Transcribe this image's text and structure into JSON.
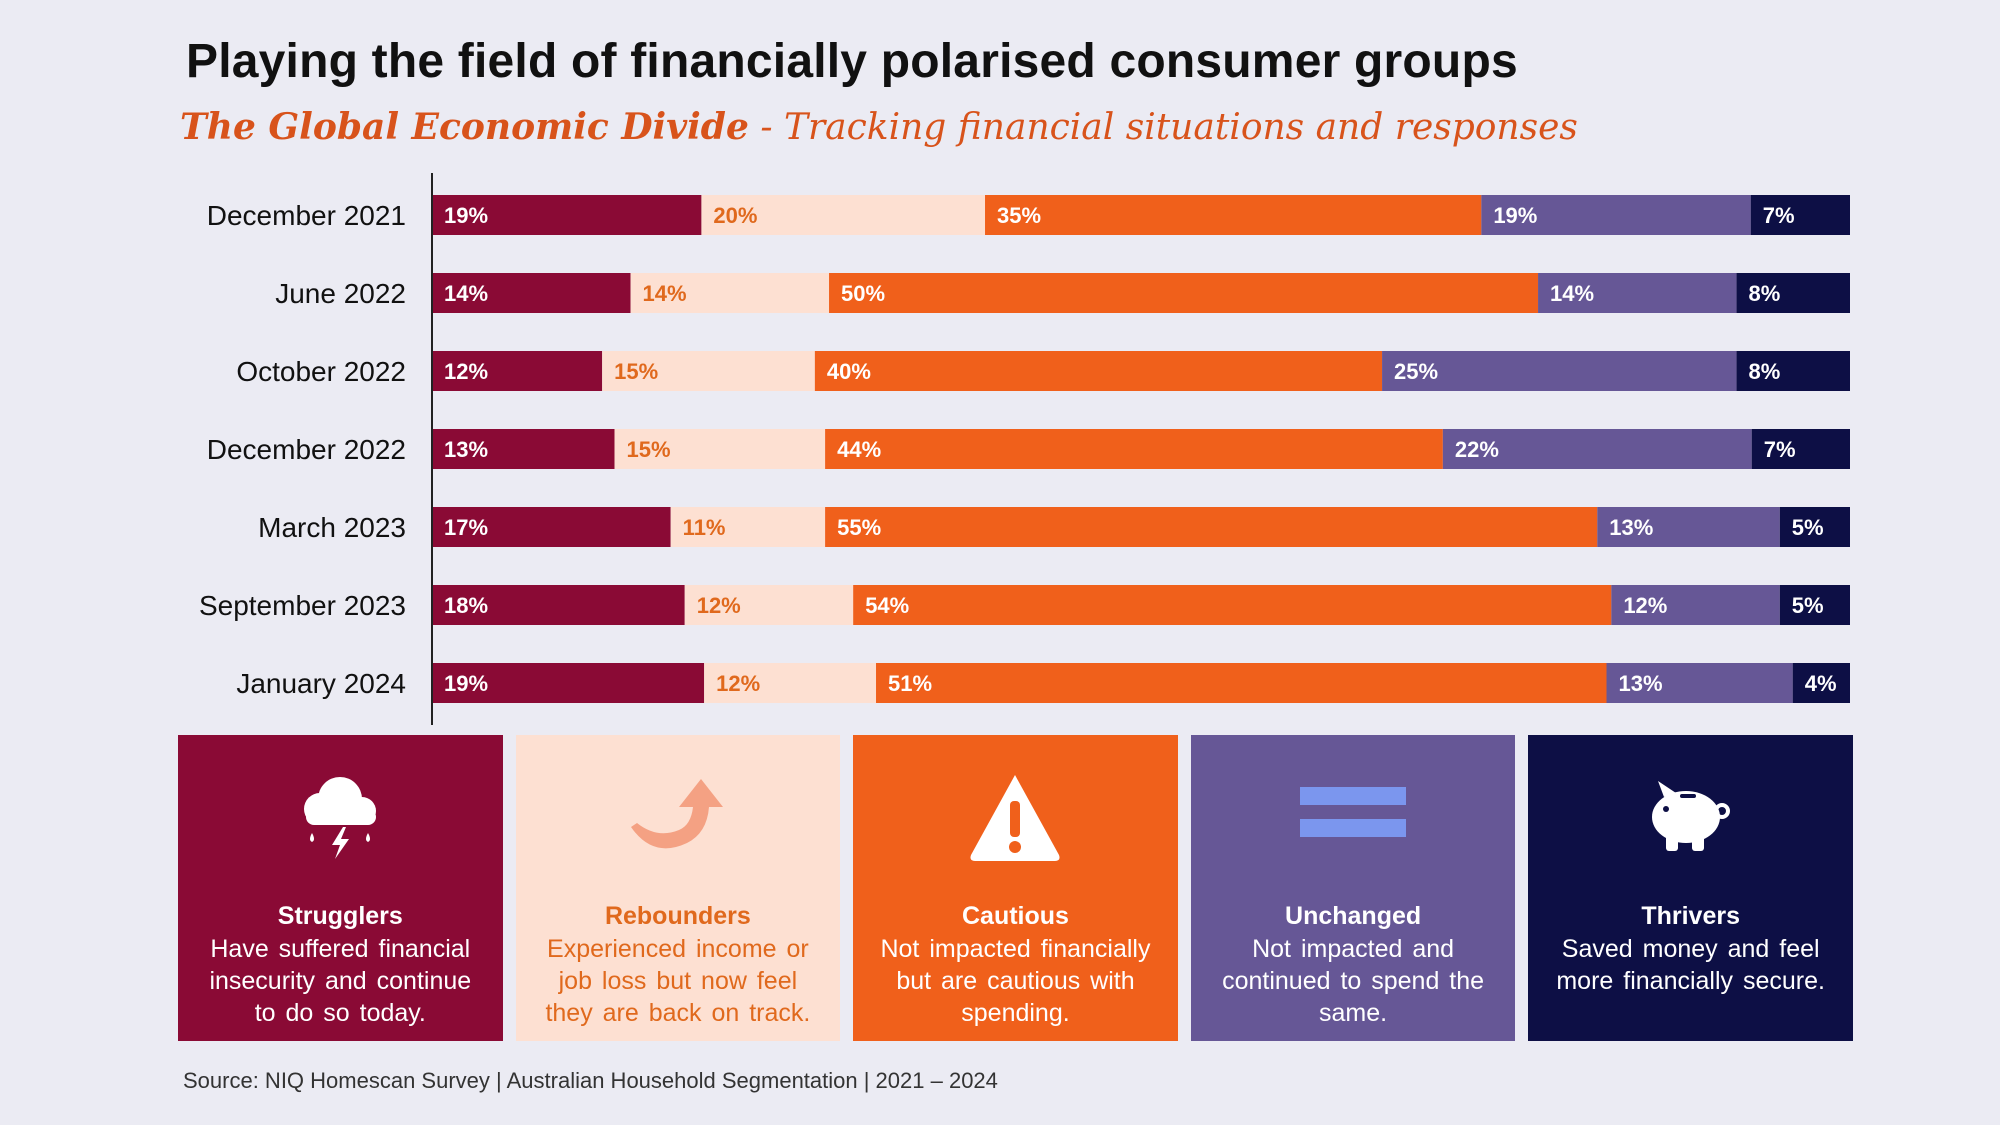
{
  "header": {
    "title": "Playing the field of financially polarised consumer groups",
    "subtitle_strong": "The Global Economic Divide",
    "subtitle_rest": " - Tracking financial situations and responses"
  },
  "chart_data": {
    "type": "bar",
    "orientation": "horizontal",
    "stacked": true,
    "value_unit": "%",
    "categories": [
      "December 2021",
      "June 2022",
      "October 2022",
      "December 2022",
      "March 2023",
      "September 2023",
      "January 2024"
    ],
    "series": [
      {
        "name": "Strugglers",
        "color": "#8a0a35",
        "label_color": "#ffffff",
        "values": [
          19,
          14,
          12,
          13,
          17,
          18,
          19
        ]
      },
      {
        "name": "Rebounders",
        "color": "#fde0d2",
        "label_color": "#e0691d",
        "values": [
          20,
          14,
          15,
          15,
          11,
          12,
          12
        ]
      },
      {
        "name": "Cautious",
        "color": "#f0601b",
        "label_color": "#ffffff",
        "values": [
          35,
          50,
          40,
          44,
          55,
          54,
          51
        ]
      },
      {
        "name": "Unchanged",
        "color": "#665796",
        "label_color": "#ffffff",
        "values": [
          19,
          14,
          25,
          22,
          13,
          12,
          13
        ]
      },
      {
        "name": "Thrivers",
        "color": "#0d0f45",
        "label_color": "#ffffff",
        "values": [
          7,
          8,
          8,
          7,
          5,
          5,
          4
        ]
      }
    ],
    "grid": false,
    "legend": "bottom"
  },
  "segments": [
    {
      "name": "Strugglers",
      "icon": "storm-cloud-icon",
      "bg": "#8a0a35",
      "fg": "#ffffff",
      "description": "Have suffered financial insecurity and continue to do so today."
    },
    {
      "name": "Rebounders",
      "icon": "curved-arrow-up-icon",
      "bg": "#fde0d2",
      "fg": "#e0691d",
      "description": "Experienced income or job loss but now feel they are back on track."
    },
    {
      "name": "Cautious",
      "icon": "warning-icon",
      "bg": "#f0601b",
      "fg": "#ffffff",
      "description": "Not impacted financially but are cautious with spending."
    },
    {
      "name": "Unchanged",
      "icon": "equals-icon",
      "bg": "#665796",
      "fg": "#ffffff",
      "description": "Not impacted and continued to spend the same."
    },
    {
      "name": "Thrivers",
      "icon": "piggy-bank-icon",
      "bg": "#0d0f45",
      "fg": "#ffffff",
      "description": "Saved money and feel more financially secure."
    }
  ],
  "footer": {
    "source": "Source: NIQ Homescan Survey | Australian Household Segmentation | 2021 – 2024"
  }
}
